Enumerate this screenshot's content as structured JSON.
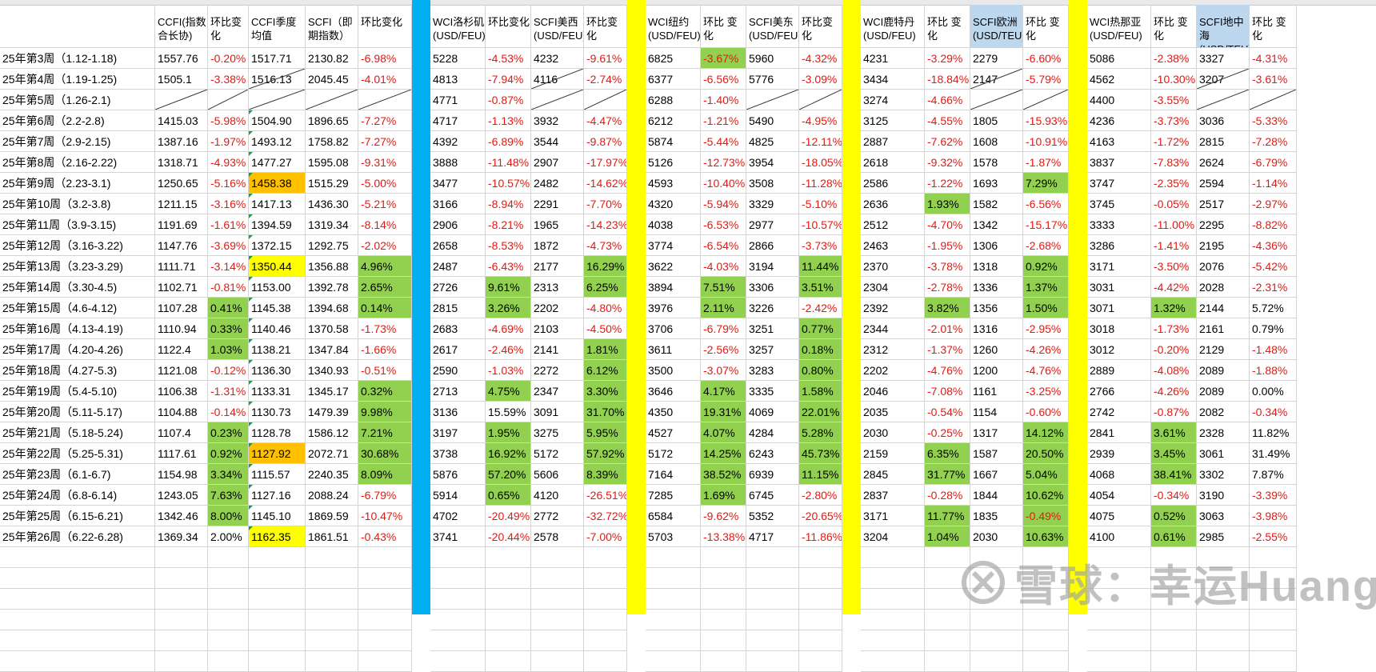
{
  "headers": [
    "CCFI(指数合长协)",
    "环比变化",
    "CCFI季度均值",
    "SCFI（即期指数）",
    "环比变化",
    "",
    "WCI洛杉矶(USD/FEU)",
    "环比变化",
    "SCFI美西(USD/FEU)",
    "环比变化",
    "",
    "WCI纽约(USD/FEU)",
    "环比 变化",
    "SCFI美东(USD/FEU)",
    "环比变化",
    "",
    "WCI鹿特丹(USD/FEU)",
    "环比 变化",
    "SCFI欧洲(USD/TEU)",
    "环比 变化",
    "",
    "WCI热那亚(USD/FEU)",
    "环比 变化",
    "SCFI地中海(USD/TEU)",
    "环比 变化"
  ],
  "rows": [
    {
      "week": "25年第3周（1.12-1.18)",
      "v": [
        "1557.76",
        "-0.20%",
        "1517.71",
        "2130.82",
        "-6.98%",
        "",
        "5228",
        "-4.53%",
        "4232",
        "-9.61%",
        "",
        "6825",
        "-3.67%",
        "5960",
        "-4.32%",
        "",
        "4231",
        "-3.29%",
        "2279",
        "-6.60%",
        "",
        "5086",
        "-2.38%",
        "3327",
        "-4.31%"
      ]
    },
    {
      "week": "25年第4周（1.19-1.25)",
      "v": [
        "1505.1",
        "-3.38%",
        "1516.13",
        "2045.45",
        "-4.01%",
        "",
        "4813",
        "-7.94%",
        "4116",
        "-2.74%",
        "",
        "6377",
        "-6.56%",
        "5776",
        "-3.09%",
        "",
        "3434",
        "-18.84%",
        "2147",
        "-5.79%",
        "",
        "4562",
        "-10.30%",
        "3207",
        "-3.61%"
      ]
    },
    {
      "week": "25年第5周（1.26-2.1)",
      "v": [
        "",
        "",
        "",
        "",
        "",
        "",
        "4771",
        "-0.87%",
        "",
        "",
        "",
        "6288",
        "-1.40%",
        "",
        "",
        "",
        "3274",
        "-4.66%",
        "",
        "",
        "",
        "4400",
        "-3.55%",
        "",
        ""
      ]
    },
    {
      "week": "25年第6周（2.2-2.8)",
      "v": [
        "1415.03",
        "-5.98%",
        "1504.90",
        "1896.65",
        "-7.27%",
        "",
        "4717",
        "-1.13%",
        "3932",
        "-4.47%",
        "",
        "6212",
        "-1.21%",
        "5490",
        "-4.95%",
        "",
        "3125",
        "-4.55%",
        "1805",
        "-15.93%",
        "",
        "4236",
        "-3.73%",
        "3036",
        "-5.33%"
      ]
    },
    {
      "week": "25年第7周（2.9-2.15)",
      "v": [
        "1387.16",
        "-1.97%",
        "1493.12",
        "1758.82",
        "-7.27%",
        "",
        "4392",
        "-6.89%",
        "3544",
        "-9.87%",
        "",
        "5874",
        "-5.44%",
        "4825",
        "-12.11%",
        "",
        "2887",
        "-7.62%",
        "1608",
        "-10.91%",
        "",
        "4163",
        "-1.72%",
        "2815",
        "-7.28%"
      ]
    },
    {
      "week": "25年第8周（2.16-2.22)",
      "v": [
        "1318.71",
        "-4.93%",
        "1477.27",
        "1595.08",
        "-9.31%",
        "",
        "3888",
        "-11.48%",
        "2907",
        "-17.97%",
        "",
        "5126",
        "-12.73%",
        "3954",
        "-18.05%",
        "",
        "2618",
        "-9.32%",
        "1578",
        "-1.87%",
        "",
        "3837",
        "-7.83%",
        "2624",
        "-6.79%"
      ]
    },
    {
      "week": "25年第9周（2.23-3.1)",
      "v": [
        "1250.65",
        "-5.16%",
        "1458.38",
        "1515.29",
        "-5.00%",
        "",
        "3477",
        "-10.57%",
        "2482",
        "-14.62%",
        "",
        "4593",
        "-10.40%",
        "3508",
        "-11.28%",
        "",
        "2586",
        "-1.22%",
        "1693",
        "7.29%",
        "",
        "3747",
        "-2.35%",
        "2594",
        "-1.14%"
      ]
    },
    {
      "week": "25年第10周（3.2-3.8)",
      "v": [
        "1211.15",
        "-3.16%",
        "1417.13",
        "1436.30",
        "-5.21%",
        "",
        "3166",
        "-8.94%",
        "2291",
        "-7.70%",
        "",
        "4320",
        "-5.94%",
        "3329",
        "-5.10%",
        "",
        "2636",
        "1.93%",
        "1582",
        "-6.56%",
        "",
        "3745",
        "-0.05%",
        "2517",
        "-2.97%"
      ]
    },
    {
      "week": "25年第11周（3.9-3.15)",
      "v": [
        "1191.69",
        "-1.61%",
        "1394.59",
        "1319.34",
        "-8.14%",
        "",
        "2906",
        "-8.21%",
        "1965",
        "-14.23%",
        "",
        "4038",
        "-6.53%",
        "2977",
        "-10.57%",
        "",
        "2512",
        "-4.70%",
        "1342",
        "-15.17%",
        "",
        "3333",
        "-11.00%",
        "2295",
        "-8.82%"
      ]
    },
    {
      "week": "25年第12周（3.16-3.22)",
      "v": [
        "1147.76",
        "-3.69%",
        "1372.15",
        "1292.75",
        "-2.02%",
        "",
        "2658",
        "-8.53%",
        "1872",
        "-4.73%",
        "",
        "3774",
        "-6.54%",
        "2866",
        "-3.73%",
        "",
        "2463",
        "-1.95%",
        "1306",
        "-2.68%",
        "",
        "3286",
        "-1.41%",
        "2195",
        "-4.36%"
      ]
    },
    {
      "week": "25年第13周（3.23-3.29)",
      "v": [
        "1111.71",
        "-3.14%",
        "1350.44",
        "1356.88",
        "4.96%",
        "",
        "2487",
        "-6.43%",
        "2177",
        "16.29%",
        "",
        "3622",
        "-4.03%",
        "3194",
        "11.44%",
        "",
        "2370",
        "-3.78%",
        "1318",
        "0.92%",
        "",
        "3171",
        "-3.50%",
        "2076",
        "-5.42%"
      ]
    },
    {
      "week": "25年第14周（3.30-4.5)",
      "v": [
        "1102.71",
        "-0.81%",
        "1153.00",
        "1392.78",
        "2.65%",
        "",
        "2726",
        "9.61%",
        "2313",
        "6.25%",
        "",
        "3894",
        "7.51%",
        "3306",
        "3.51%",
        "",
        "2304",
        "-2.78%",
        "1336",
        "1.37%",
        "",
        "3031",
        "-4.42%",
        "2028",
        "-2.31%"
      ]
    },
    {
      "week": "25年第15周（4.6-4.12)",
      "v": [
        "1107.28",
        "0.41%",
        "1145.38",
        "1394.68",
        "0.14%",
        "",
        "2815",
        "3.26%",
        "2202",
        "-4.80%",
        "",
        "3976",
        "2.11%",
        "3226",
        "-2.42%",
        "",
        "2392",
        "3.82%",
        "1356",
        "1.50%",
        "",
        "3071",
        "1.32%",
        "2144",
        "5.72%"
      ]
    },
    {
      "week": "25年第16周（4.13-4.19)",
      "v": [
        "1110.94",
        "0.33%",
        "1140.46",
        "1370.58",
        "-1.73%",
        "",
        "2683",
        "-4.69%",
        "2103",
        "-4.50%",
        "",
        "3706",
        "-6.79%",
        "3251",
        "0.77%",
        "",
        "2344",
        "-2.01%",
        "1316",
        "-2.95%",
        "",
        "3018",
        "-1.73%",
        "2161",
        "0.79%"
      ]
    },
    {
      "week": "25年第17周（4.20-4.26)",
      "v": [
        "1122.4",
        "1.03%",
        "1138.21",
        "1347.84",
        "-1.66%",
        "",
        "2617",
        "-2.46%",
        "2141",
        "1.81%",
        "",
        "3611",
        "-2.56%",
        "3257",
        "0.18%",
        "",
        "2312",
        "-1.37%",
        "1260",
        "-4.26%",
        "",
        "3012",
        "-0.20%",
        "2129",
        "-1.48%"
      ]
    },
    {
      "week": "25年第18周（4.27-5.3)",
      "v": [
        "1121.08",
        "-0.12%",
        "1136.30",
        "1340.93",
        "-0.51%",
        "",
        "2590",
        "-1.03%",
        "2272",
        "6.12%",
        "",
        "3500",
        "-3.07%",
        "3283",
        "0.80%",
        "",
        "2202",
        "-4.76%",
        "1200",
        "-4.76%",
        "",
        "2889",
        "-4.08%",
        "2089",
        "-1.88%"
      ]
    },
    {
      "week": "25年第19周（5.4-5.10)",
      "v": [
        "1106.38",
        "-1.31%",
        "1133.31",
        "1345.17",
        "0.32%",
        "",
        "2713",
        "4.75%",
        "2347",
        "3.30%",
        "",
        "3646",
        "4.17%",
        "3335",
        "1.58%",
        "",
        "2046",
        "-7.08%",
        "1161",
        "-3.25%",
        "",
        "2766",
        "-4.26%",
        "2089",
        "0.00%"
      ]
    },
    {
      "week": "25年第20周（5.11-5.17)",
      "v": [
        "1104.88",
        "-0.14%",
        "1130.73",
        "1479.39",
        "9.98%",
        "",
        "3136",
        "15.59%",
        "3091",
        "31.70%",
        "",
        "4350",
        "19.31%",
        "4069",
        "22.01%",
        "",
        "2035",
        "-0.54%",
        "1154",
        "-0.60%",
        "",
        "2742",
        "-0.87%",
        "2082",
        "-0.34%"
      ]
    },
    {
      "week": "25年第21周（5.18-5.24)",
      "v": [
        "1107.4",
        "0.23%",
        "1128.78",
        "1586.12",
        "7.21%",
        "",
        "3197",
        "1.95%",
        "3275",
        "5.95%",
        "",
        "4527",
        "4.07%",
        "4284",
        "5.28%",
        "",
        "2030",
        "-0.25%",
        "1317",
        "14.12%",
        "",
        "2841",
        "3.61%",
        "2328",
        "11.82%"
      ]
    },
    {
      "week": "25年第22周（5.25-5.31)",
      "v": [
        "1117.61",
        "0.92%",
        "1127.92",
        "2072.71",
        "30.68%",
        "",
        "3738",
        "16.92%",
        "5172",
        "57.92%",
        "",
        "5172",
        "14.25%",
        "6243",
        "45.73%",
        "",
        "2159",
        "6.35%",
        "1587",
        "20.50%",
        "",
        "2939",
        "3.45%",
        "3061",
        "31.49%"
      ]
    },
    {
      "week": "25年第23周（6.1-6.7)",
      "v": [
        "1154.98",
        "3.34%",
        "1115.57",
        "2240.35",
        "8.09%",
        "",
        "5876",
        "57.20%",
        "5606",
        "8.39%",
        "",
        "7164",
        "38.52%",
        "6939",
        "11.15%",
        "",
        "2845",
        "31.77%",
        "1667",
        "5.04%",
        "",
        "4068",
        "38.41%",
        "3302",
        "7.87%"
      ]
    },
    {
      "week": "25年第24周（6.8-6.14)",
      "v": [
        "1243.05",
        "7.63%",
        "1127.16",
        "2088.24",
        "-6.79%",
        "",
        "5914",
        "0.65%",
        "4120",
        "-26.51%",
        "",
        "7285",
        "1.69%",
        "6745",
        "-2.80%",
        "",
        "2837",
        "-0.28%",
        "1844",
        "10.62%",
        "",
        "4054",
        "-0.34%",
        "3190",
        "-3.39%"
      ]
    },
    {
      "week": "25年第25周（6.15-6.21)",
      "v": [
        "1342.46",
        "8.00%",
        "1145.10",
        "1869.59",
        "-10.47%",
        "",
        "4702",
        "-20.49%",
        "2772",
        "-32.72%",
        "",
        "6584",
        "-9.62%",
        "5352",
        "-20.65%",
        "",
        "3171",
        "11.77%",
        "1835",
        "-0.49%",
        "",
        "4075",
        "0.52%",
        "3063",
        "-3.98%"
      ]
    },
    {
      "week": "25年第26周（6.22-6.28)",
      "v": [
        "1369.34",
        "2.00%",
        "1162.35",
        "1861.51",
        "-0.43%",
        "",
        "3741",
        "-20.44%",
        "2578",
        "-7.00%",
        "",
        "5703",
        "-13.38%",
        "4717",
        "-11.86%",
        "",
        "3204",
        "1.04%",
        "2030",
        "10.63%",
        "",
        "4100",
        "0.61%",
        "2985",
        "-2.55%"
      ]
    }
  ],
  "colors": {
    "green": "#92d050",
    "yellow": "#ffff00",
    "orange": "#ffc000",
    "light_blue": "#bdd7ee",
    "red_text": "#e8170f",
    "sep_blue": "#00b0f0",
    "sep_yellow": "#ffff00"
  },
  "watermark": {
    "icon": "xueqiu-logo-icon",
    "text": "雪球：幸运Huang"
  }
}
